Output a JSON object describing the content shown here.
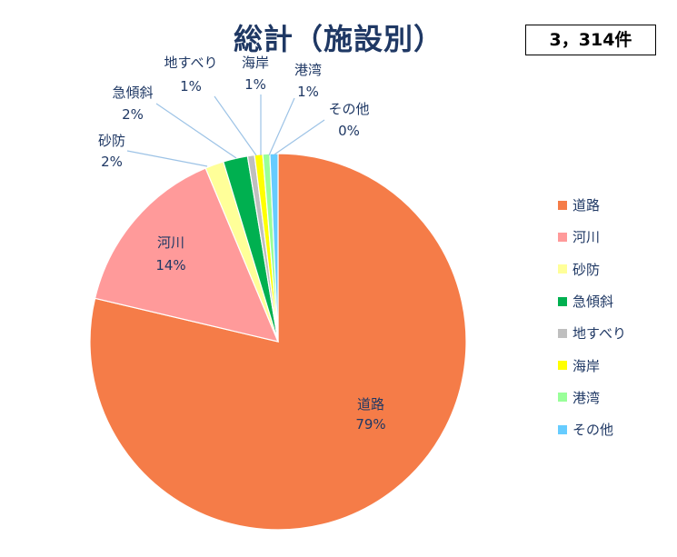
{
  "header": {
    "title": "総計（施設別）",
    "total": "3，314件"
  },
  "chart_data": {
    "type": "pie",
    "title": "総計（施設別）",
    "unit": "%",
    "slices": [
      {
        "name": "道路",
        "value": 79,
        "label": "79%",
        "color": "#f57c48"
      },
      {
        "name": "河川",
        "value": 14,
        "label": "14%",
        "color": "#ff9a9a"
      },
      {
        "name": "砂防",
        "value": 2,
        "label": "2%",
        "color": "#ffff99"
      },
      {
        "name": "急傾斜",
        "value": 2,
        "label": "2%",
        "color": "#00b050"
      },
      {
        "name": "地すべり",
        "value": 1,
        "label": "1%",
        "color": "#bfbfbf"
      },
      {
        "name": "海岸",
        "value": 1,
        "label": "1%",
        "color": "#ffff00"
      },
      {
        "name": "港湾",
        "value": 1,
        "label": "1%",
        "color": "#99ff99"
      },
      {
        "name": "その他",
        "value": 0,
        "label": "0%",
        "color": "#66ccff"
      }
    ],
    "legend_position": "right"
  }
}
